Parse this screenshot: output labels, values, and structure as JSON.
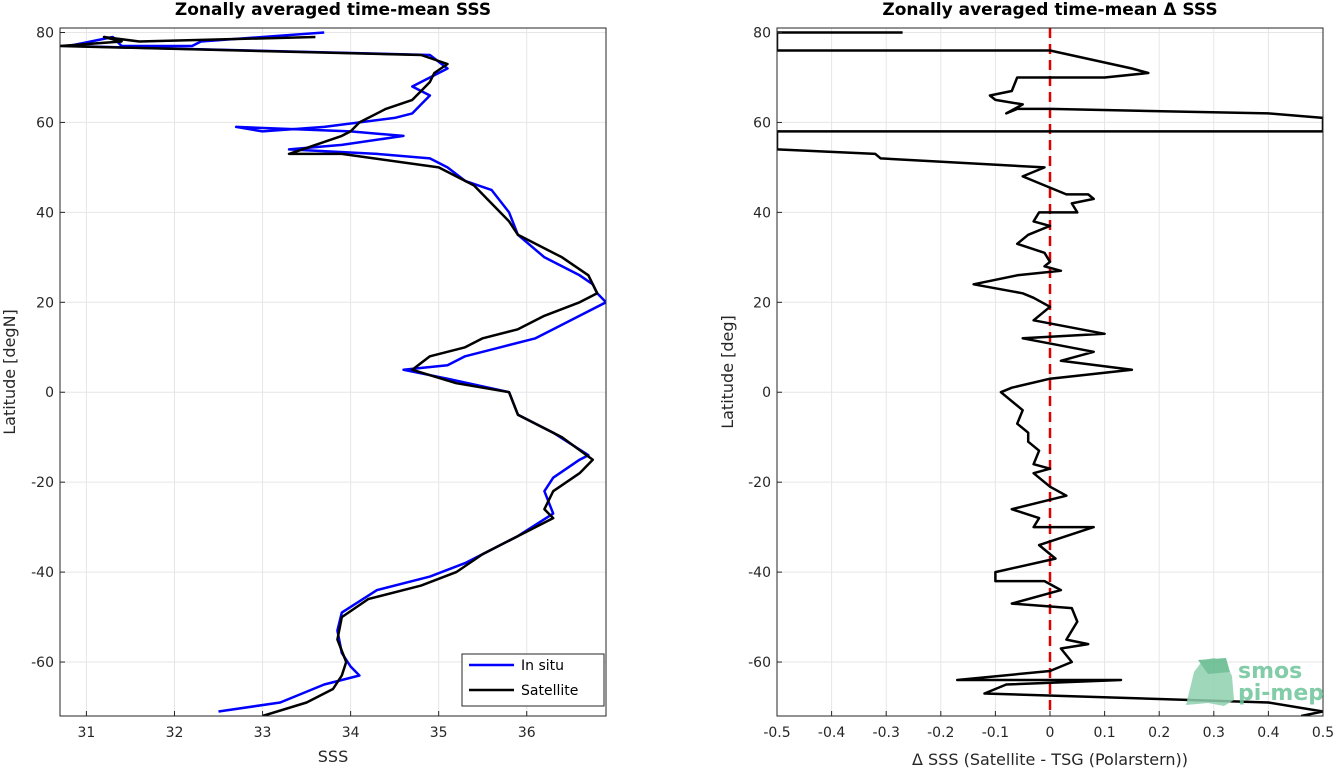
{
  "chart_data": [
    {
      "type": "line",
      "title": "Zonally averaged time-mean SSS",
      "xlabel": "SSS",
      "ylabel": "Latitude [degN]",
      "xlim": [
        30.7,
        36.9
      ],
      "ylim": [
        -72,
        81
      ],
      "xticks": [
        31,
        32,
        33,
        34,
        35,
        36
      ],
      "yticks": [
        -60,
        -40,
        -20,
        0,
        20,
        40,
        60,
        80
      ],
      "grid": true,
      "legend": "bottom-right",
      "series": [
        {
          "name": "In situ",
          "color": "#0000ff",
          "x": [
            33.7,
            32.3,
            32.2,
            31.4,
            31.3,
            30.8,
            34.9,
            35.1,
            34.9,
            34.7,
            34.9,
            34.8,
            34.7,
            34.5,
            33.7,
            33.0,
            32.7,
            34.0,
            34.6,
            33.9,
            33.3,
            34.3,
            34.9,
            35.1,
            35.3,
            35.6,
            35.8,
            35.9,
            36.2,
            36.4,
            36.6,
            36.75,
            36.8,
            36.9,
            36.6,
            36.3,
            36.1,
            35.7,
            35.3,
            35.1,
            34.6,
            35.1,
            35.8,
            35.9,
            36.3,
            36.7,
            36.6,
            36.3,
            36.2,
            36.3,
            35.9,
            35.6,
            35.3,
            34.9,
            34.3,
            33.9,
            33.85,
            33.9,
            34.0,
            34.1,
            33.7,
            33.2,
            32.5
          ],
          "y": [
            80,
            78,
            77,
            77,
            79,
            77,
            75,
            72,
            70,
            68,
            66,
            64,
            62,
            61,
            59,
            58,
            59,
            58,
            57,
            55,
            54,
            53,
            52,
            50,
            47,
            45,
            40,
            35,
            30,
            28,
            26,
            24,
            22,
            20,
            17,
            14,
            12,
            10,
            8,
            6,
            5,
            3,
            0,
            -5,
            -9,
            -14,
            -15,
            -19,
            -22,
            -27,
            -32,
            -35,
            -38,
            -41,
            -44,
            -49,
            -53,
            -58,
            -61,
            -63,
            -65,
            -69,
            -71
          ]
        },
        {
          "name": "Satellite",
          "color": "#000000",
          "x": [
            33.6,
            31.6,
            31.2,
            31.4,
            30.7,
            34.8,
            35.1,
            34.95,
            34.9,
            34.8,
            34.7,
            34.4,
            34.1,
            34.0,
            33.9,
            33.6,
            33.3,
            33.9,
            35.0,
            35.4,
            35.6,
            35.8,
            35.9,
            36.4,
            36.7,
            36.75,
            36.8,
            36.6,
            36.2,
            35.9,
            35.5,
            35.3,
            34.9,
            34.7,
            35.2,
            35.8,
            35.9,
            36.4,
            36.75,
            36.6,
            36.3,
            36.2,
            36.3,
            35.9,
            35.5,
            35.2,
            34.8,
            34.2,
            33.9,
            33.85,
            33.95,
            33.9,
            33.8,
            33.5,
            33.0
          ],
          "y": [
            79,
            78,
            79,
            78,
            77,
            75,
            73,
            71,
            69,
            67,
            65,
            63,
            60,
            58,
            57,
            55,
            53,
            53,
            50,
            46,
            42,
            38,
            35,
            30,
            26,
            24,
            22,
            20,
            17,
            14,
            12,
            10,
            8,
            5,
            2,
            0,
            -5,
            -10,
            -15,
            -18,
            -22,
            -26,
            -28,
            -32,
            -36,
            -40,
            -43,
            -46,
            -50,
            -55,
            -60,
            -63,
            -66,
            -69,
            -72
          ]
        }
      ]
    },
    {
      "type": "line",
      "title": "Zonally averaged time-mean Δ SSS",
      "xlabel": "Δ SSS (Satellite - TSG (Polarstern))",
      "ylabel": "Latitude [deg]",
      "xlim": [
        -0.5,
        0.5
      ],
      "ylim": [
        -72,
        81
      ],
      "xticks": [
        -0.5,
        -0.4,
        -0.3,
        -0.2,
        -0.1,
        0,
        0.1,
        0.2,
        0.3,
        0.4,
        0.5
      ],
      "yticks": [
        -60,
        -40,
        -20,
        0,
        20,
        40,
        60,
        80
      ],
      "grid": true,
      "reference_line": {
        "x": 0,
        "color": "#e00000",
        "style": "dashed"
      },
      "series": [
        {
          "name": "",
          "color": "#000000",
          "x": [
            -0.27,
            -0.5,
            -0.5,
            0.0,
            0.15,
            0.18,
            0.1,
            -0.06,
            -0.07,
            -0.11,
            -0.1,
            -0.05,
            -0.08,
            -0.06,
            0.0,
            0.4,
            0.5,
            0.5,
            -0.5,
            -0.5,
            -0.5,
            -0.32,
            -0.31,
            -0.01,
            -0.05,
            -0.01,
            0.03,
            0.07,
            0.08,
            0.04,
            0.05,
            -0.02,
            -0.03,
            0.0,
            -0.04,
            -0.06,
            -0.01,
            0.0,
            -0.01,
            0.02,
            -0.06,
            -0.14,
            -0.05,
            -0.03,
            0.0,
            -0.03,
            0.1,
            -0.05,
            0.08,
            0.02,
            0.15,
            0.0,
            -0.07,
            -0.09,
            -0.05,
            -0.06,
            -0.04,
            -0.04,
            -0.02,
            -0.03,
            0.0,
            -0.03,
            0.0,
            0.03,
            -0.07,
            -0.02,
            -0.03,
            0.08,
            -0.02,
            0.01,
            -0.1,
            -0.1,
            -0.01,
            0.02,
            -0.07,
            0.04,
            0.05,
            0.03,
            0.07,
            0.02,
            0.04,
            0.0,
            -0.17,
            0.13,
            -0.08,
            -0.12,
            0.4,
            0.5,
            0.46
          ],
          "y": [
            80,
            80,
            76,
            76,
            72,
            71,
            70,
            70,
            67,
            66,
            65,
            64,
            62,
            63,
            63,
            62,
            61,
            58,
            58,
            57,
            54,
            53,
            52,
            50,
            48,
            46,
            44,
            44,
            43,
            42,
            40,
            40,
            38,
            37,
            35,
            33,
            31,
            29,
            28,
            27,
            26,
            24,
            22,
            21,
            19,
            16,
            13,
            12,
            9,
            7,
            5,
            3,
            1,
            0,
            -4,
            -7,
            -9,
            -11,
            -13,
            -16,
            -17,
            -18,
            -21,
            -23,
            -26,
            -28,
            -30,
            -30,
            -34,
            -37,
            -40,
            -42,
            -42,
            -44,
            -47,
            -48,
            -51,
            -55,
            -56,
            -57,
            -60,
            -62,
            -64,
            -64,
            -65,
            -67,
            -69,
            -71,
            -72
          ]
        }
      ]
    }
  ],
  "legend": {
    "items": [
      "In situ",
      "Satellite"
    ]
  },
  "logo": {
    "line1": "smos",
    "line2": "pi-mep"
  },
  "colors": {
    "insitu": "#0000ff",
    "satellite": "#000000",
    "zero_line": "#e00000",
    "logo": "#6ec49a"
  }
}
